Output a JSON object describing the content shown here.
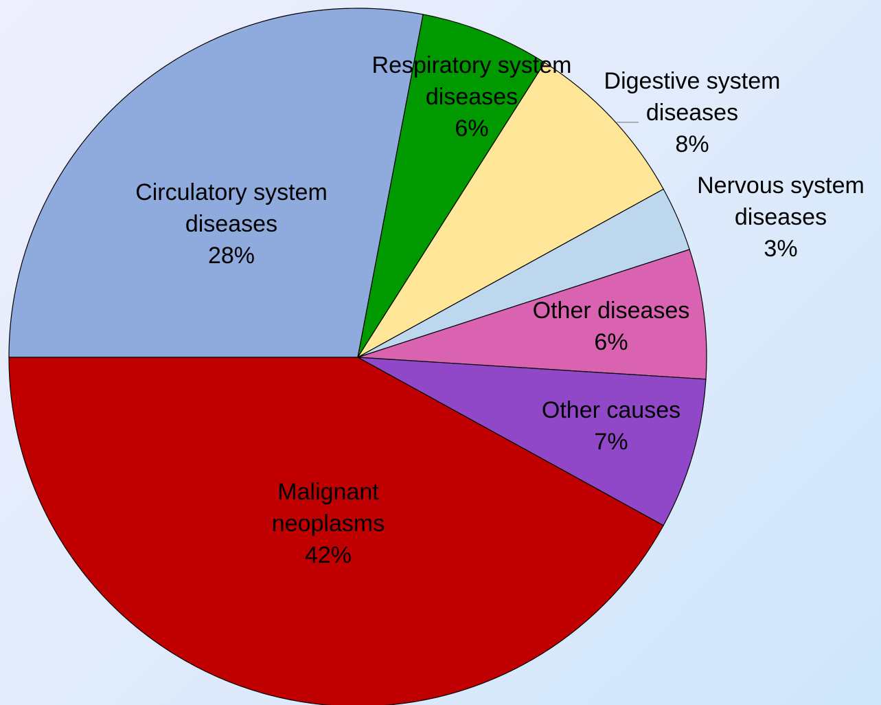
{
  "chart_data": {
    "type": "pie",
    "categories": [
      "Circulatory system diseases",
      "Respiratory system diseases",
      "Digestive system diseases",
      "Nervous system diseases",
      "Other diseases",
      "Other causes",
      "Malignant neoplasms"
    ],
    "values": [
      28,
      6,
      8,
      3,
      6,
      7,
      42
    ],
    "value_labels": [
      "28%",
      "6%",
      "8%",
      "3%",
      "6%",
      "7%",
      "42%"
    ],
    "colors": [
      "#8faadc",
      "#009900",
      "#ffe699",
      "#bdd7ee",
      "#d963b0",
      "#9148c8",
      "#c00000"
    ]
  }
}
